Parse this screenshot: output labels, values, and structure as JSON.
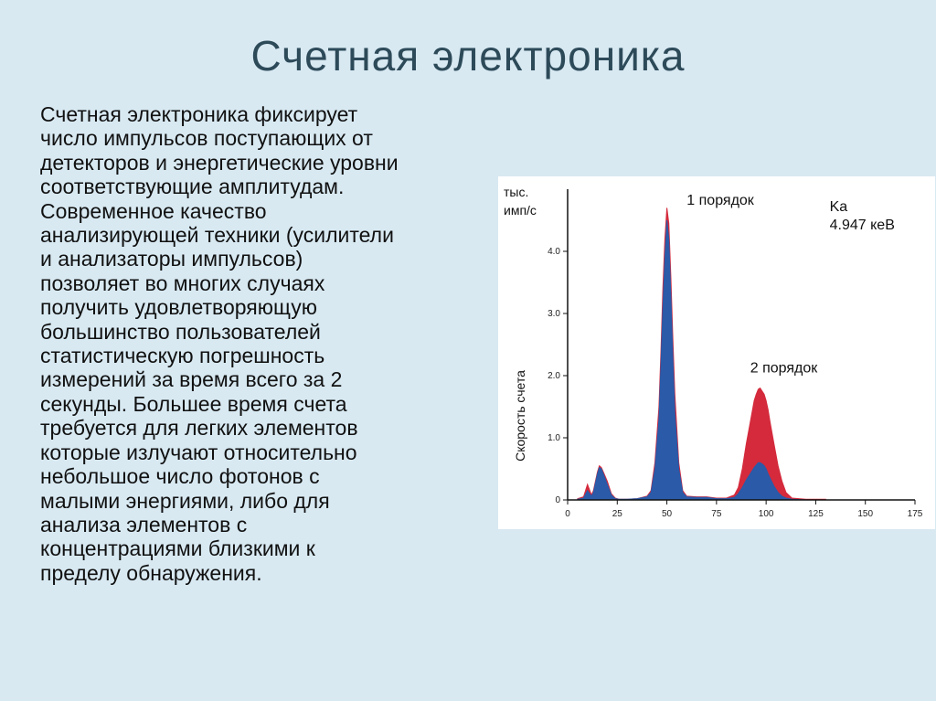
{
  "title": "Счетная электроника",
  "body_lines": [
    "Счетная электроника фиксирует",
    "число импульсов поступающих от",
    "детекторов и энергетические уровни",
    "соответствующие амплитудам.",
    "Современное качество",
    "анализирующей техники (усилители",
    "и анализаторы импульсов)",
    "позволяет во многих случаях",
    "получить удовлетворяющую",
    "большинство пользователей",
    "статистическую погрешность",
    "измерений за время всего за 2",
    "секунды. Большее время счета",
    "требуется для легких элементов",
    "которые излучают относительно",
    "небольшое число фотонов с",
    "малыми энергиями, либо для",
    "анализа элементов с",
    "концентрациями близкими к",
    "пределу обнаружения."
  ],
  "chart_data": {
    "type": "area",
    "ylabel": "Скорость счета",
    "yunit": [
      "тыс.",
      "имп/с"
    ],
    "xlim": [
      0,
      175
    ],
    "ylim": [
      0,
      5
    ],
    "xticks": [
      0,
      25,
      50,
      75,
      100,
      125,
      150,
      175
    ],
    "xtick_labels": [
      "0",
      "25",
      "50",
      "75",
      "100",
      "125",
      "150",
      "175"
    ],
    "yticks": [
      0,
      1,
      2,
      3,
      4
    ],
    "ytick_labels": [
      "0",
      "1.0",
      "2.0",
      "3.0",
      "4.0"
    ],
    "colors": {
      "series_red": "#d42a3c",
      "series_blue": "#2a5aa8",
      "axis": "#111111"
    },
    "series": [
      {
        "color": "red",
        "x": [
          5,
          8,
          10,
          12,
          13,
          15,
          16,
          17,
          18,
          20,
          22,
          24,
          26,
          30,
          35,
          40,
          42,
          44,
          46,
          47,
          48,
          49,
          50,
          51,
          52,
          53,
          54,
          56,
          58,
          60,
          65,
          70,
          75,
          80,
          84,
          86,
          88,
          90,
          92,
          94,
          95,
          96,
          97,
          98,
          99,
          100,
          101,
          102,
          104,
          106,
          108,
          110,
          113,
          120,
          130
        ],
        "y": [
          0.02,
          0.05,
          0.25,
          0.08,
          0.15,
          0.45,
          0.55,
          0.52,
          0.45,
          0.3,
          0.1,
          0.03,
          0.01,
          0.01,
          0.02,
          0.06,
          0.15,
          0.6,
          1.5,
          2.4,
          3.4,
          4.2,
          4.7,
          4.45,
          3.6,
          2.6,
          1.7,
          0.6,
          0.15,
          0.06,
          0.05,
          0.05,
          0.03,
          0.03,
          0.08,
          0.2,
          0.5,
          0.9,
          1.25,
          1.6,
          1.7,
          1.78,
          1.8,
          1.75,
          1.7,
          1.6,
          1.45,
          1.25,
          0.9,
          0.55,
          0.3,
          0.12,
          0.03,
          0.01,
          0.01
        ]
      },
      {
        "color": "blue",
        "x": [
          5,
          8,
          10,
          12,
          13,
          15,
          16,
          17,
          18,
          20,
          22,
          24,
          26,
          30,
          35,
          40,
          42,
          44,
          46,
          47,
          48,
          49,
          50,
          51,
          52,
          53,
          54,
          56,
          58,
          60,
          65,
          70,
          75,
          80,
          84,
          86,
          88,
          90,
          92,
          94,
          95,
          96,
          97,
          98,
          99,
          100,
          101,
          102,
          104,
          106,
          108,
          110,
          113,
          120,
          130
        ],
        "y": [
          0.01,
          0.03,
          0.15,
          0.06,
          0.12,
          0.42,
          0.52,
          0.5,
          0.42,
          0.25,
          0.08,
          0.02,
          0.01,
          0.01,
          0.02,
          0.05,
          0.12,
          0.5,
          1.3,
          2.2,
          3.1,
          3.9,
          4.5,
          4.2,
          3.3,
          2.3,
          1.4,
          0.5,
          0.12,
          0.05,
          0.04,
          0.04,
          0.02,
          0.02,
          0.04,
          0.1,
          0.2,
          0.32,
          0.42,
          0.52,
          0.56,
          0.6,
          0.6,
          0.58,
          0.55,
          0.5,
          0.42,
          0.35,
          0.22,
          0.12,
          0.06,
          0.03,
          0.01,
          0.0,
          0.0
        ]
      }
    ],
    "annotations": [
      {
        "text": "1 порядок",
        "x": 60,
        "y": 4.75
      },
      {
        "text": "2 порядок",
        "x": 92,
        "y": 2.05
      },
      {
        "text": "Ka",
        "x": 132,
        "y": 4.65
      },
      {
        "text": "4.947 кеВ",
        "x": 132,
        "y": 4.35
      }
    ]
  }
}
